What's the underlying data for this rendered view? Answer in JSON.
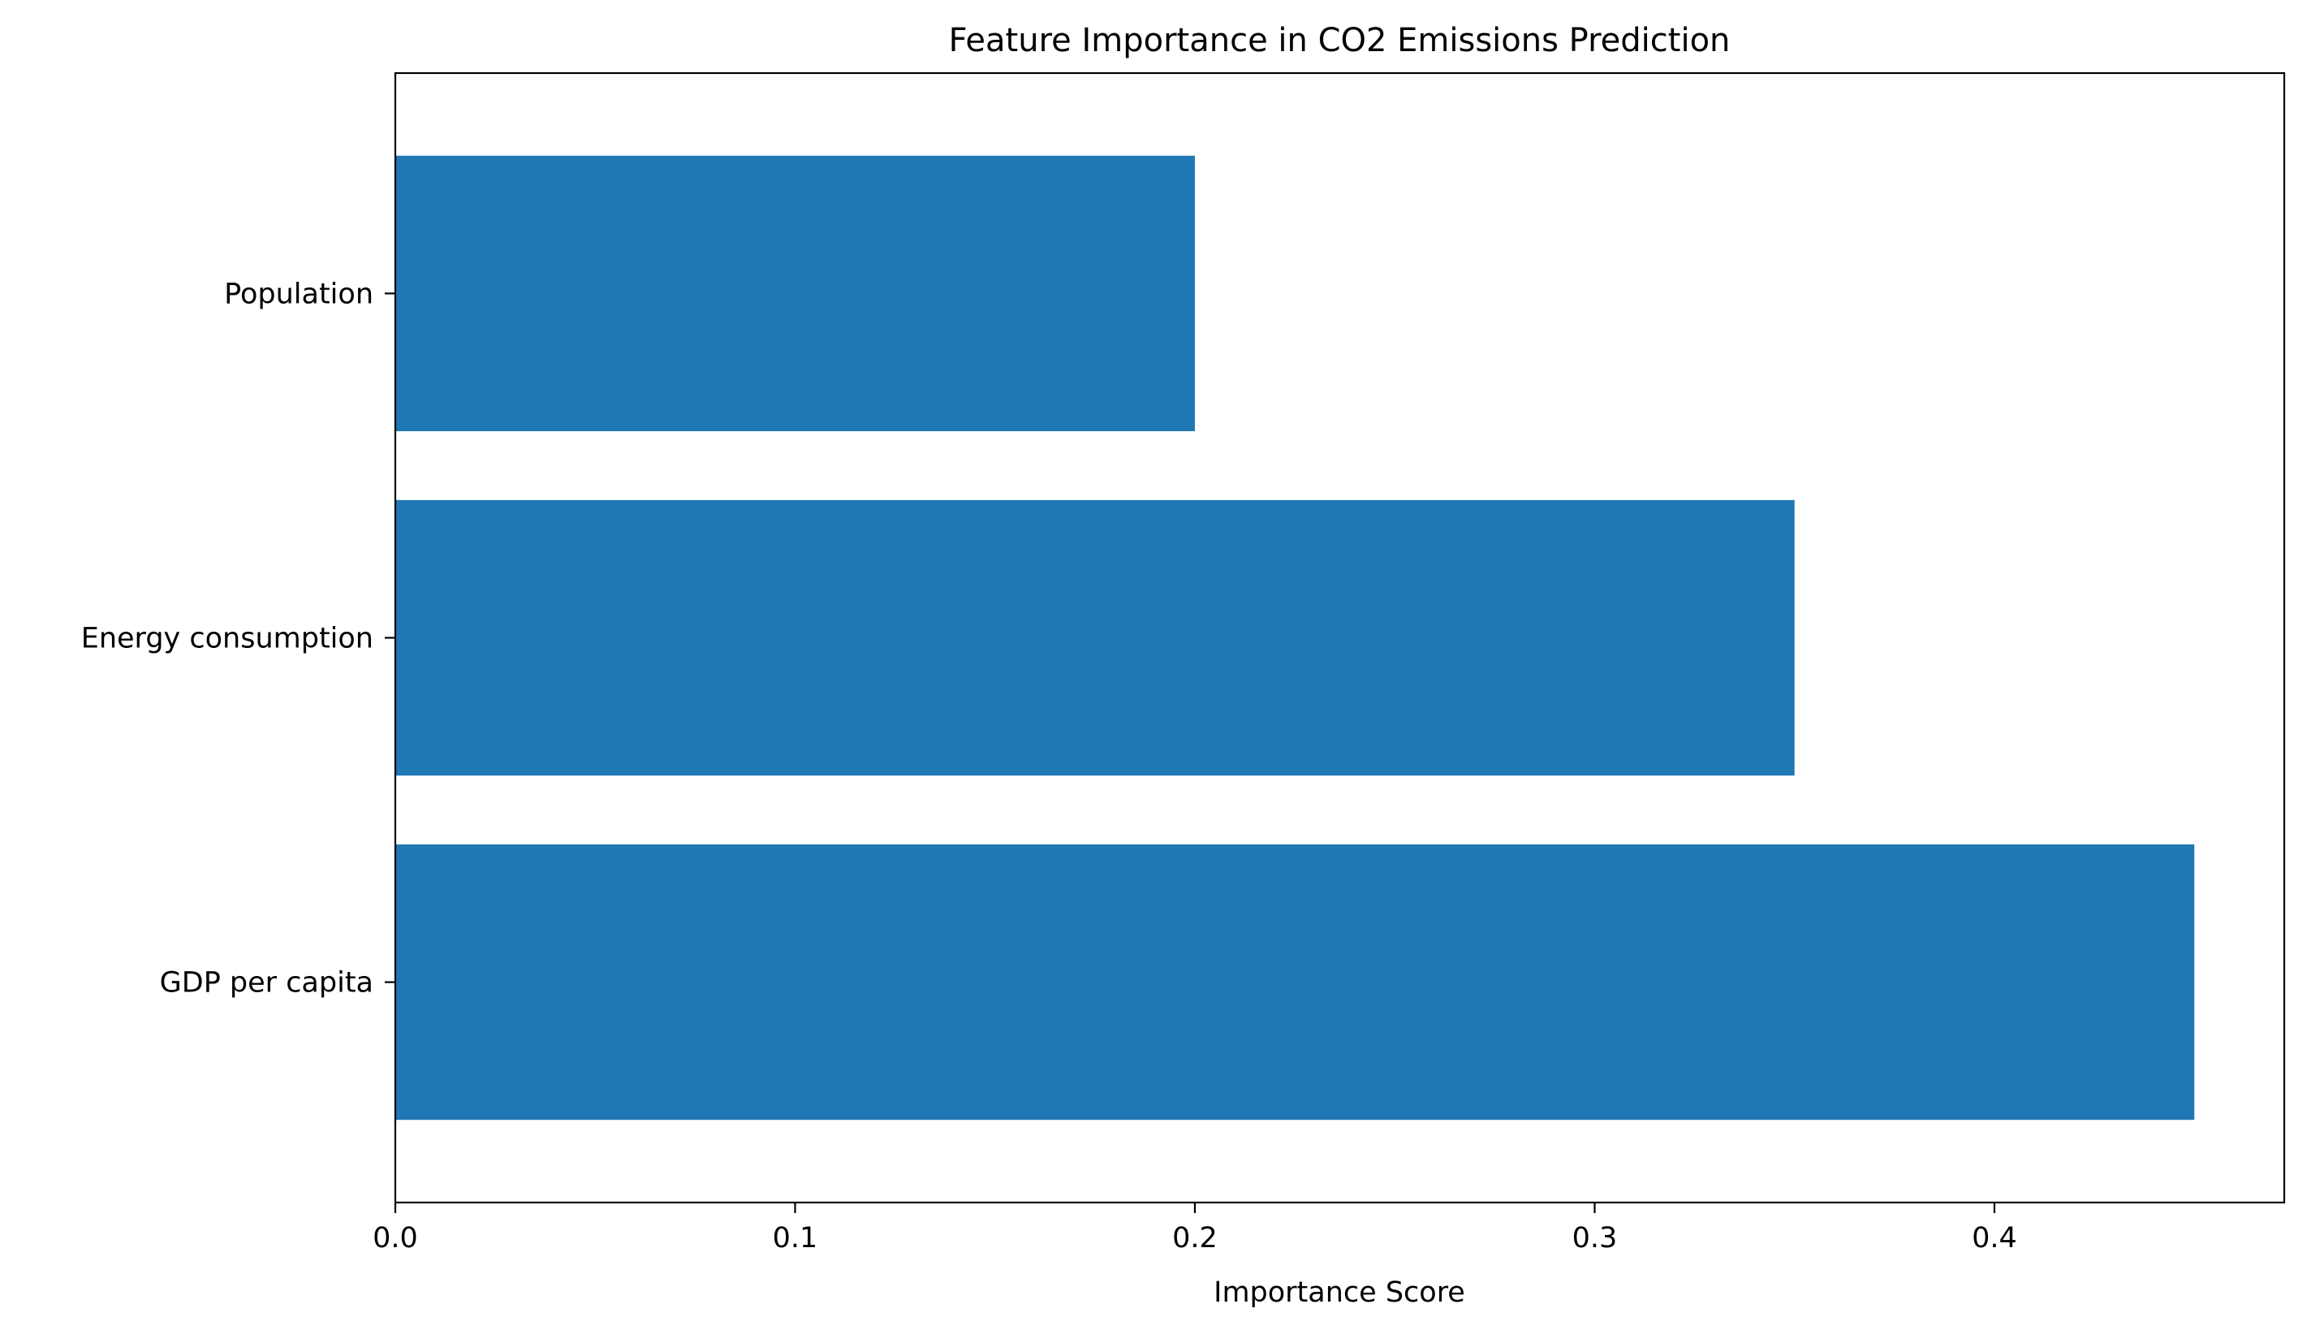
{
  "chart_data": {
    "type": "bar",
    "orientation": "horizontal",
    "title": "Feature Importance in CO2 Emissions Prediction",
    "xlabel": "Importance Score",
    "ylabel": "",
    "categories": [
      "GDP per capita",
      "Energy consumption",
      "Population"
    ],
    "values": [
      0.45,
      0.35,
      0.2
    ],
    "xlim": [
      0,
      0.4725
    ],
    "xticks": [
      0.0,
      0.1,
      0.2,
      0.3,
      0.4
    ],
    "xtick_labels": [
      "0.0",
      "0.1",
      "0.2",
      "0.3",
      "0.4"
    ],
    "bar_color": "#1f77b4",
    "grid": false,
    "legend": "none"
  }
}
